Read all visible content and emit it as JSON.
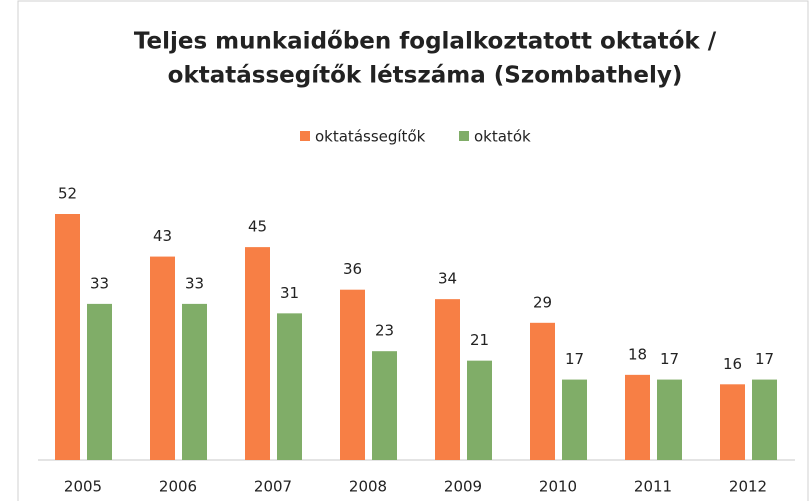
{
  "chart_data": {
    "type": "bar",
    "title": [
      "Teljes munkaidőben foglalkoztatott oktatók /",
      "oktatássegítők létszáma (Szombathely)"
    ],
    "categories": [
      "2005",
      "2006",
      "2007",
      "2008",
      "2009",
      "2010",
      "2011",
      "2012"
    ],
    "series": [
      {
        "name": "oktatássegítők",
        "color": "#f77f45",
        "values": [
          52,
          43,
          45,
          36,
          34,
          29,
          18,
          16
        ]
      },
      {
        "name": "oktatók",
        "color": "#80ad68",
        "values": [
          33,
          33,
          31,
          23,
          21,
          17,
          17,
          17
        ]
      }
    ],
    "legend": "top"
  }
}
